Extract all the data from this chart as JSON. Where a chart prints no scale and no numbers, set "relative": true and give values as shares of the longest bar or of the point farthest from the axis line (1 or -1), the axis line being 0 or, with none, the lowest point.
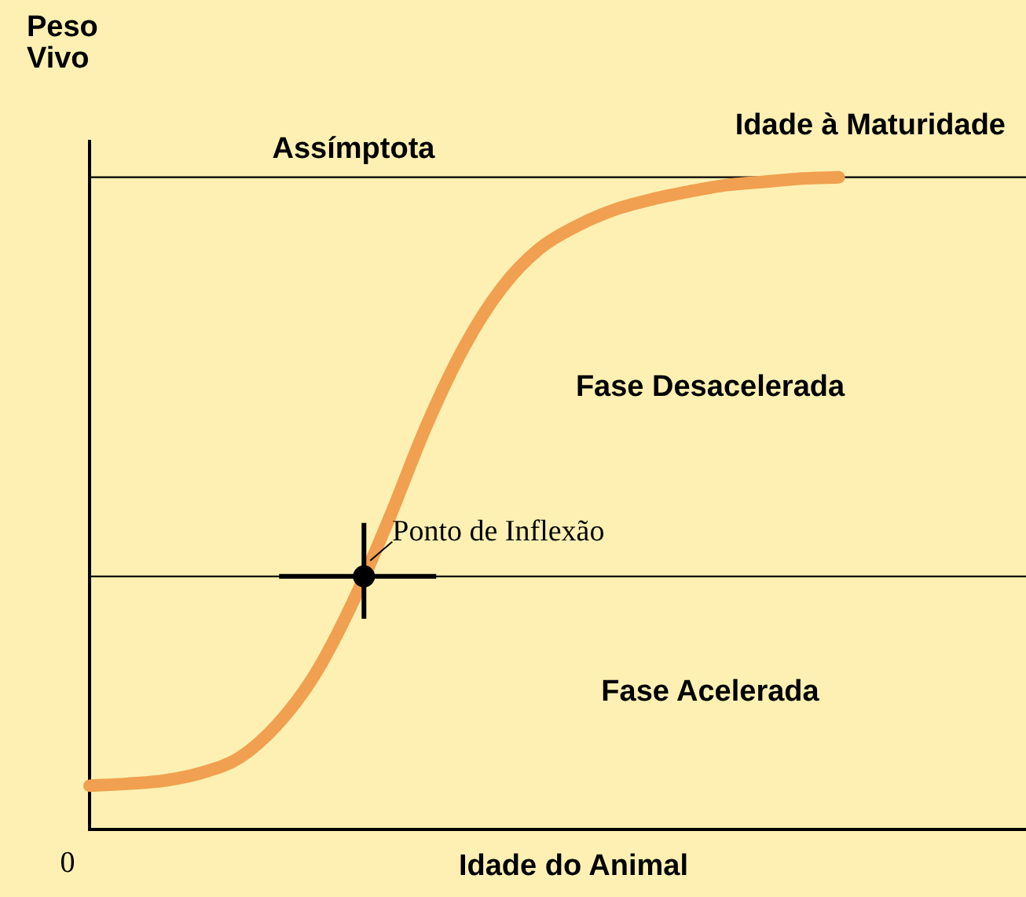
{
  "chart_data": {
    "type": "line",
    "relative": true,
    "ylabel": "Peso Vivo",
    "xlabel": "Idade do Animal",
    "categories": [
      null,
      null,
      null,
      null,
      null,
      null,
      null,
      null,
      null,
      null,
      null,
      null,
      null,
      null,
      null,
      null,
      null,
      null,
      null,
      null,
      null,
      null,
      null,
      null,
      null,
      null
    ],
    "series": [
      {
        "color": "#f0a050",
        "values": [
          0.067,
          0.07,
          0.075,
          0.087,
          0.11,
          0.16,
          0.236,
          0.345,
          0.477,
          0.62,
          0.74,
          0.83,
          0.89,
          0.925,
          0.95,
          0.966,
          0.978,
          0.988,
          0.993,
          0.998,
          1.0,
          null,
          null,
          null,
          null,
          null
        ]
      }
    ],
    "ref_lines": [
      {
        "axis": "y",
        "value": 1,
        "label": "Assímptota",
        "color": "#000000"
      },
      {
        "axis": "y",
        "value": 0.388,
        "label": null,
        "color": "#000000"
      }
    ],
    "annotations": [
      "Idade à Maturidade",
      "Fase Desacelerada",
      "Fase Acelerada",
      "0",
      {
        "text": "Ponto de Inflexão",
        "y": 0.388
      }
    ],
    "marker": "none",
    "line_style": "solid",
    "grid": false
  }
}
